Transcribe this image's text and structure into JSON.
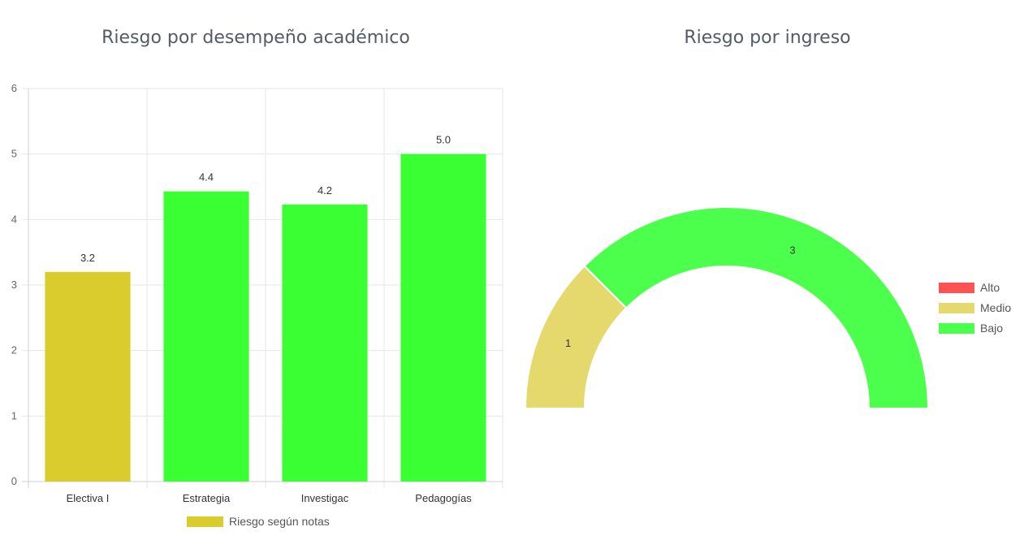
{
  "bar_chart": {
    "title": "Riesgo por desempeño académico",
    "legend_label": "Riesgo según notas"
  },
  "gauge_chart": {
    "title": "Riesgo por ingreso"
  },
  "chart_data": [
    {
      "type": "bar",
      "title": "Riesgo por desempeño académico",
      "categories": [
        "Electiva I",
        "Estrategia",
        "Investigac",
        "Pedagogías"
      ],
      "series": [
        {
          "name": "Riesgo según notas",
          "values": [
            3.2,
            4.43,
            4.23,
            5.0
          ]
        }
      ],
      "value_labels": [
        "3.2",
        "4.4",
        "4.2",
        "5.0"
      ],
      "bar_colors": [
        "#d9cc2c",
        "#39ff33",
        "#39ff33",
        "#39ff33"
      ],
      "legend_color": "#d9cc2c",
      "ylim": [
        0,
        6
      ],
      "yticks": [
        0,
        1,
        2,
        3,
        4,
        5,
        6
      ],
      "grid": true,
      "legend_position": "bottom"
    },
    {
      "type": "pie",
      "variant": "half-doughnut",
      "title": "Riesgo por ingreso",
      "labels": [
        "Alto",
        "Medio",
        "Bajo"
      ],
      "values": [
        0,
        1,
        3
      ],
      "value_labels": [
        "",
        "1",
        "3"
      ],
      "colors": [
        "#ff5252",
        "#e5d96e",
        "#4cff4c"
      ],
      "legend_position": "right"
    }
  ]
}
